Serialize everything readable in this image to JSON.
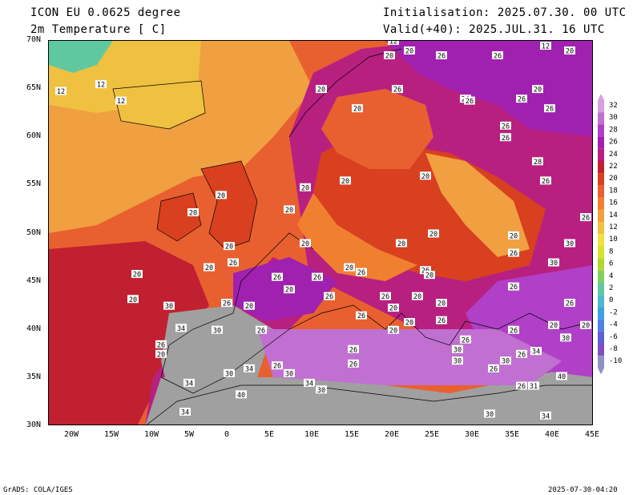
{
  "header": {
    "model_title": "ICON EU 0.0625 degree",
    "variable_title": "2m Temperature [ C]",
    "init_text": "Initialisation: 2025.07.30. 00 UTC",
    "valid_text": "Valid(+40): 2025.JUL.31. 16 UTC"
  },
  "axes": {
    "lat_labels": [
      "70N",
      "65N",
      "60N",
      "55N",
      "50N",
      "45N",
      "40N",
      "35N",
      "30N"
    ],
    "lon_labels": [
      "20W",
      "15W",
      "10W",
      "5W",
      "0",
      "5E",
      "10E",
      "15E",
      "20E",
      "25E",
      "30E",
      "35E",
      "40E",
      "45E"
    ]
  },
  "colorbar": {
    "labels": [
      "32",
      "30",
      "28",
      "26",
      "24",
      "22",
      "20",
      "18",
      "16",
      "14",
      "12",
      "10",
      "8",
      "6",
      "4",
      "2",
      "0",
      "-2",
      "-4",
      "-6",
      "-8",
      "-10"
    ],
    "colors": [
      "#d8a0e0",
      "#c070d0",
      "#b040c8",
      "#a020b0",
      "#b82080",
      "#c02030",
      "#d84020",
      "#e86030",
      "#f08030",
      "#f0a040",
      "#f0c040",
      "#f0e040",
      "#d8e030",
      "#b0d830",
      "#80d060",
      "#60c8a0",
      "#50b8d0",
      "#40a0e0",
      "#5080e0",
      "#6060d0",
      "#8050c0",
      "#9090c8"
    ]
  },
  "map": {
    "land_color": "#a0a0a0",
    "station_labels": [
      {
        "text": "12",
        "lon": 20,
        "lat": 70
      },
      {
        "text": "20",
        "lon": 22,
        "lat": 69
      },
      {
        "text": "20",
        "lon": 19.5,
        "lat": 68.5
      },
      {
        "text": "26",
        "lon": 26,
        "lat": 68.5
      },
      {
        "text": "26",
        "lon": 33,
        "lat": 68.5
      },
      {
        "text": "12",
        "lon": 39,
        "lat": 69.5
      },
      {
        "text": "20",
        "lon": 42,
        "lat": 69
      },
      {
        "text": "12",
        "lon": -16.5,
        "lat": 65.5
      },
      {
        "text": "12",
        "lon": -21.5,
        "lat": 64.8
      },
      {
        "text": "12",
        "lon": -14,
        "lat": 63.8
      },
      {
        "text": "20",
        "lon": 11,
        "lat": 65
      },
      {
        "text": "26",
        "lon": 20.5,
        "lat": 65
      },
      {
        "text": "26",
        "lon": 29,
        "lat": 64
      },
      {
        "text": "26",
        "lon": 29.5,
        "lat": 63.8
      },
      {
        "text": "26",
        "lon": 36,
        "lat": 64
      },
      {
        "text": "20",
        "lon": 38,
        "lat": 65
      },
      {
        "text": "26",
        "lon": 39.5,
        "lat": 63
      },
      {
        "text": "20",
        "lon": 15.5,
        "lat": 63
      },
      {
        "text": "26",
        "lon": 34,
        "lat": 61.2
      },
      {
        "text": "26",
        "lon": 34,
        "lat": 60
      },
      {
        "text": "28",
        "lon": 38,
        "lat": 57.5
      },
      {
        "text": "26",
        "lon": 39,
        "lat": 55.5
      },
      {
        "text": "20",
        "lon": 24,
        "lat": 56
      },
      {
        "text": "20",
        "lon": 14,
        "lat": 55.5
      },
      {
        "text": "20",
        "lon": 9,
        "lat": 54.8
      },
      {
        "text": "20",
        "lon": -1.5,
        "lat": 54
      },
      {
        "text": "20",
        "lon": -5,
        "lat": 52.2
      },
      {
        "text": "20",
        "lon": 7,
        "lat": 52.5
      },
      {
        "text": "26",
        "lon": 44,
        "lat": 51.7
      },
      {
        "text": "20",
        "lon": 25,
        "lat": 50
      },
      {
        "text": "20",
        "lon": 35,
        "lat": 49.8
      },
      {
        "text": "20",
        "lon": 9,
        "lat": 49
      },
      {
        "text": "20",
        "lon": 21,
        "lat": 49
      },
      {
        "text": "30",
        "lon": 42,
        "lat": 49
      },
      {
        "text": "20",
        "lon": -0.5,
        "lat": 48.7
      },
      {
        "text": "26",
        "lon": 35,
        "lat": 48
      },
      {
        "text": "26",
        "lon": 0,
        "lat": 47
      },
      {
        "text": "30",
        "lon": 40,
        "lat": 47
      },
      {
        "text": "20",
        "lon": -3,
        "lat": 46.5
      },
      {
        "text": "20",
        "lon": -12,
        "lat": 45.8
      },
      {
        "text": "20",
        "lon": 14.5,
        "lat": 46.5
      },
      {
        "text": "26",
        "lon": 16,
        "lat": 46
      },
      {
        "text": "26",
        "lon": 24,
        "lat": 46.2
      },
      {
        "text": "20",
        "lon": 24.5,
        "lat": 45.7
      },
      {
        "text": "26",
        "lon": 5.5,
        "lat": 45.5
      },
      {
        "text": "26",
        "lon": 10.5,
        "lat": 45.5
      },
      {
        "text": "20",
        "lon": 7,
        "lat": 44.2
      },
      {
        "text": "26",
        "lon": 35,
        "lat": 44.5
      },
      {
        "text": "20",
        "lon": -12.5,
        "lat": 43.2
      },
      {
        "text": "26",
        "lon": 12,
        "lat": 43.5
      },
      {
        "text": "26",
        "lon": 19,
        "lat": 43.5
      },
      {
        "text": "20",
        "lon": 23,
        "lat": 43.5
      },
      {
        "text": "20",
        "lon": 26,
        "lat": 42.8
      },
      {
        "text": "30",
        "lon": -8,
        "lat": 42.5
      },
      {
        "text": "26",
        "lon": -0.8,
        "lat": 42.8
      },
      {
        "text": "20",
        "lon": 2,
        "lat": 42.5
      },
      {
        "text": "26",
        "lon": 42,
        "lat": 42.8
      },
      {
        "text": "20",
        "lon": 20,
        "lat": 42.3
      },
      {
        "text": "26",
        "lon": 16,
        "lat": 41.5
      },
      {
        "text": "26",
        "lon": 26,
        "lat": 41
      },
      {
        "text": "20",
        "lon": 22,
        "lat": 40.8
      },
      {
        "text": "20",
        "lon": 40,
        "lat": 40.5
      },
      {
        "text": "20",
        "lon": 44,
        "lat": 40.5
      },
      {
        "text": "34",
        "lon": -6.5,
        "lat": 40.2
      },
      {
        "text": "30",
        "lon": -2,
        "lat": 40
      },
      {
        "text": "26",
        "lon": 3.5,
        "lat": 40
      },
      {
        "text": "20",
        "lon": 20,
        "lat": 40
      },
      {
        "text": "26",
        "lon": 35,
        "lat": 40
      },
      {
        "text": "30",
        "lon": 41.5,
        "lat": 39.2
      },
      {
        "text": "26",
        "lon": -9,
        "lat": 38.5
      },
      {
        "text": "26",
        "lon": 29,
        "lat": 39
      },
      {
        "text": "20",
        "lon": -9,
        "lat": 37.5
      },
      {
        "text": "26",
        "lon": 15,
        "lat": 38
      },
      {
        "text": "30",
        "lon": 28,
        "lat": 38
      },
      {
        "text": "26",
        "lon": 36,
        "lat": 37.5
      },
      {
        "text": "34",
        "lon": 37.8,
        "lat": 37.8
      },
      {
        "text": "30",
        "lon": 28,
        "lat": 36.8
      },
      {
        "text": "30",
        "lon": 34,
        "lat": 36.8
      },
      {
        "text": "26",
        "lon": 15,
        "lat": 36.5
      },
      {
        "text": "26",
        "lon": 5.5,
        "lat": 36.3
      },
      {
        "text": "34",
        "lon": 2,
        "lat": 36
      },
      {
        "text": "30",
        "lon": -0.5,
        "lat": 35.5
      },
      {
        "text": "30",
        "lon": 7,
        "lat": 35.5
      },
      {
        "text": "26",
        "lon": 32.5,
        "lat": 36
      },
      {
        "text": "40",
        "lon": 41,
        "lat": 35.2
      },
      {
        "text": "34",
        "lon": -5.5,
        "lat": 34.5
      },
      {
        "text": "34",
        "lon": 9.5,
        "lat": 34.5
      },
      {
        "text": "30",
        "lon": 11,
        "lat": 33.8
      },
      {
        "text": "26",
        "lon": 36,
        "lat": 34.2
      },
      {
        "text": "31",
        "lon": 37.5,
        "lat": 34.2
      },
      {
        "text": "40",
        "lon": 1,
        "lat": 33.3
      },
      {
        "text": "34",
        "lon": -6,
        "lat": 31.5
      },
      {
        "text": "30",
        "lon": 32,
        "lat": 31.3
      },
      {
        "text": "34",
        "lon": 39,
        "lat": 31.1
      }
    ]
  }
}
